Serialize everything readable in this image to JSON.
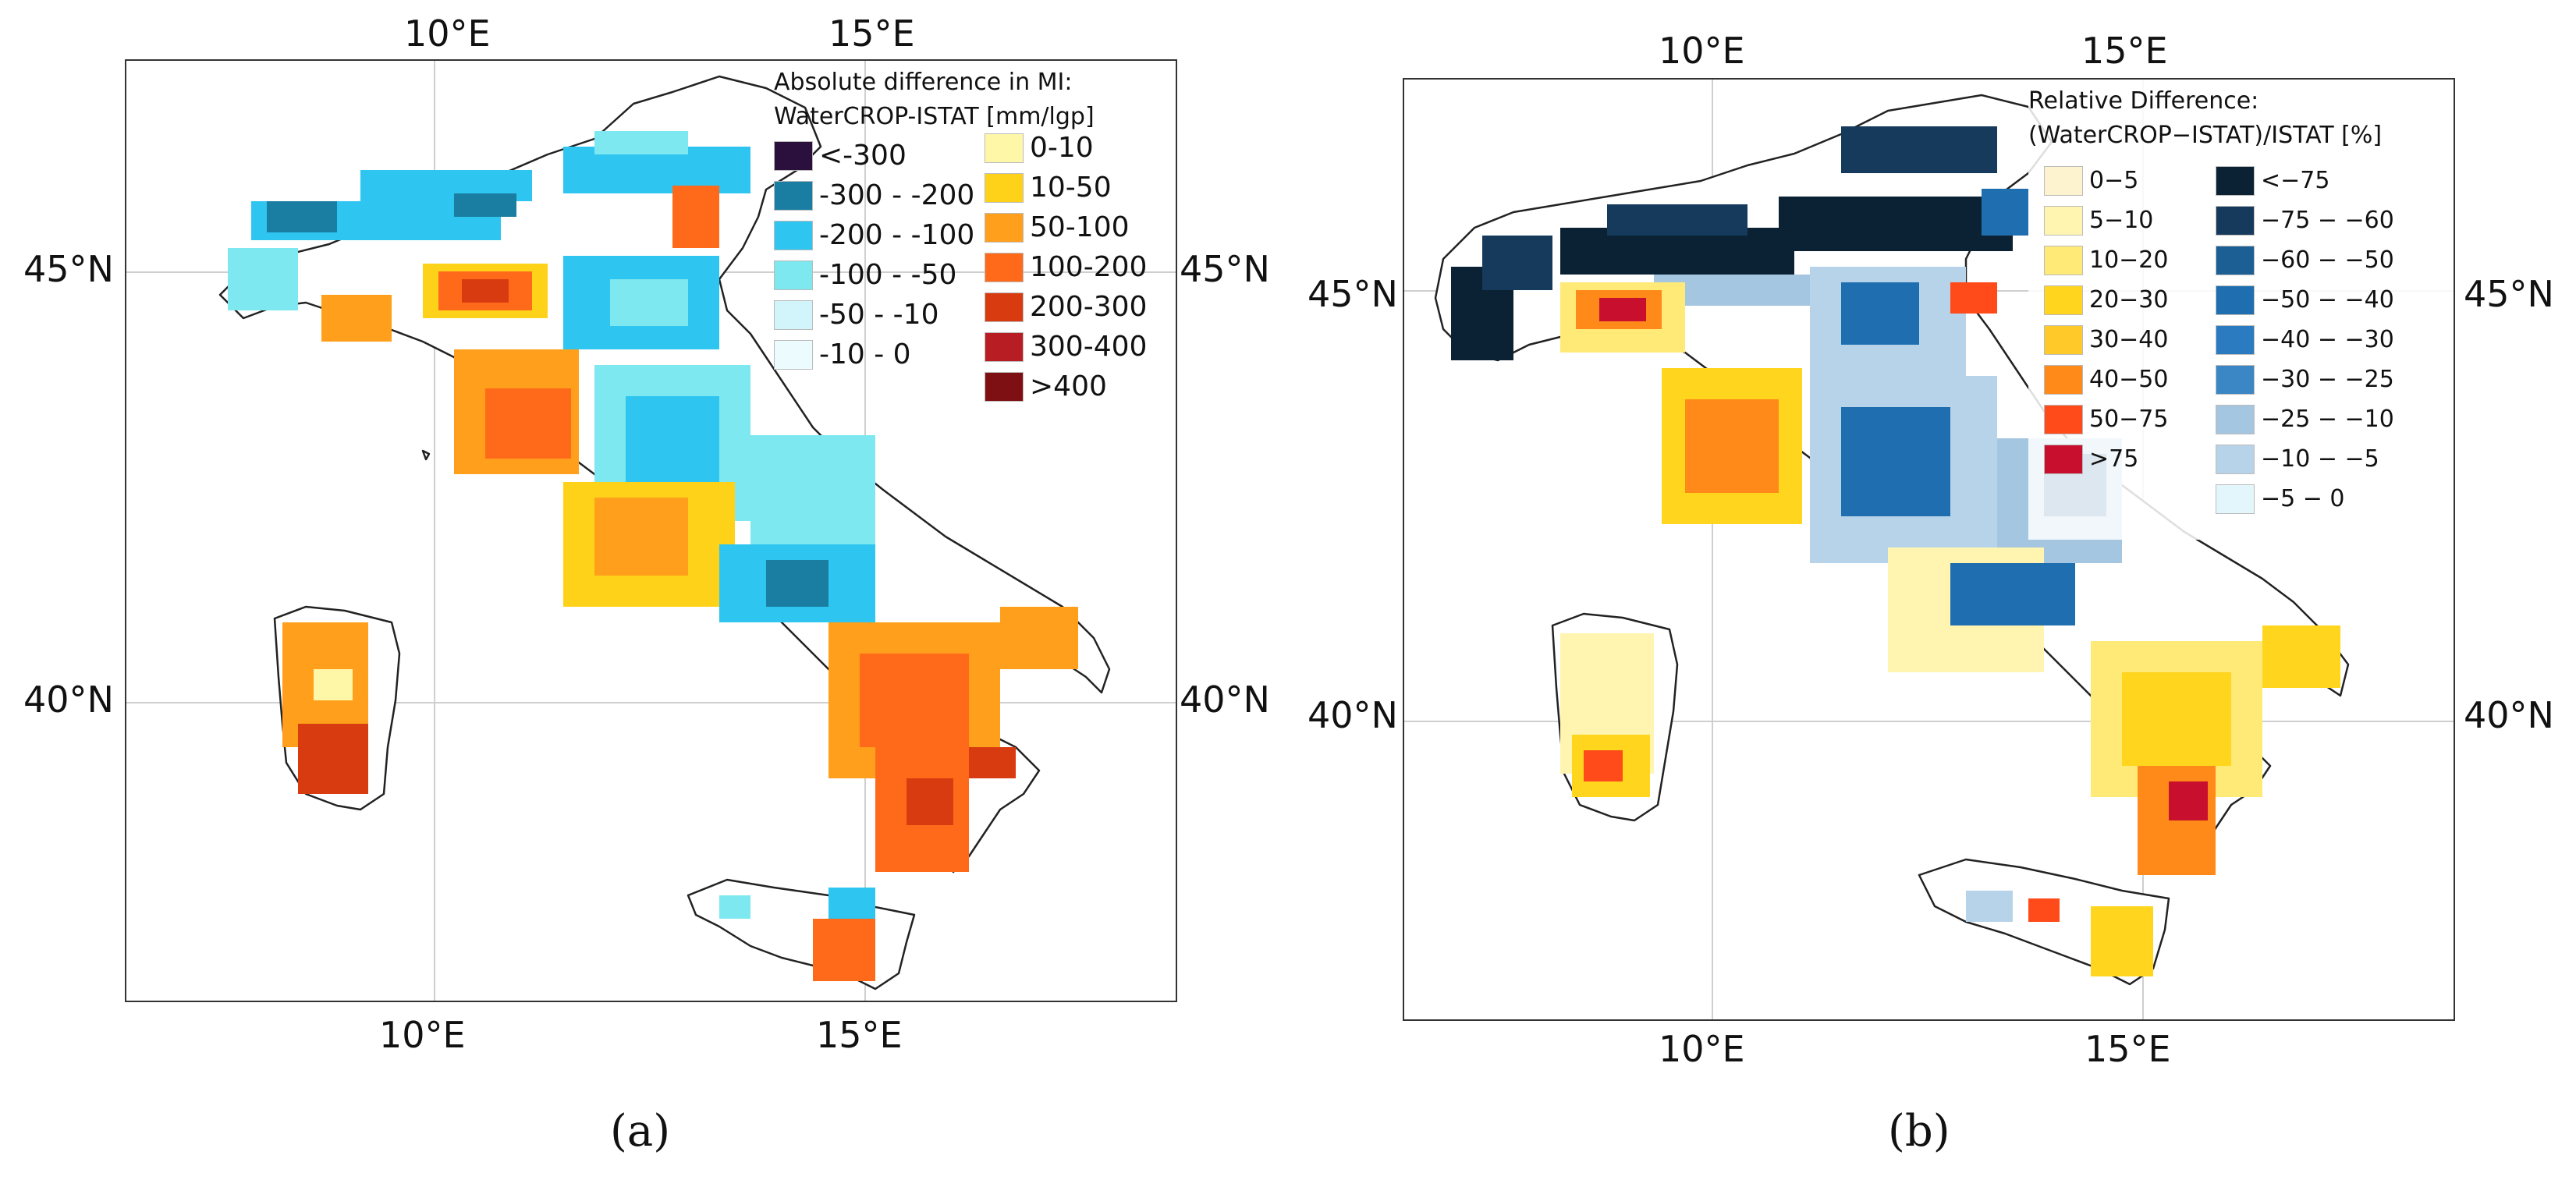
{
  "panel_a": {
    "caption": "(a)",
    "lon_ticks": [
      "10°E",
      "15°E"
    ],
    "lat_ticks": [
      "45°N",
      "40°N"
    ],
    "legend": {
      "title_line1": "Absolute difference in MI:",
      "title_line2": "WaterCROP-ISTAT [mm/lgp]",
      "left_items": [
        {
          "label": "<-300",
          "color": "#2b0f3d"
        },
        {
          "label": "-300 - -200",
          "color": "#1a7ea3"
        },
        {
          "label": "-200 - -100",
          "color": "#2ec5f0"
        },
        {
          "label": "-100 - -50",
          "color": "#7de8ef"
        },
        {
          "label": "-50 - -10",
          "color": "#d2f5fb"
        },
        {
          "label": "-10 - 0",
          "color": "#ecfbfd"
        }
      ],
      "right_items": [
        {
          "label": "0-10",
          "color": "#fff7a8"
        },
        {
          "label": "10-50",
          "color": "#ffd21a"
        },
        {
          "label": "50-100",
          "color": "#ff9f1c"
        },
        {
          "label": "100-200",
          "color": "#ff6a1a"
        },
        {
          "label": "200-300",
          "color": "#d83b10"
        },
        {
          "label": "300-400",
          "color": "#b81d24"
        },
        {
          "label": ">400",
          "color": "#7e0f12"
        }
      ]
    }
  },
  "panel_b": {
    "caption": "(b)",
    "lon_ticks": [
      "10°E",
      "15°E"
    ],
    "lat_ticks": [
      "45°N",
      "40°N"
    ],
    "legend": {
      "title_line1": "Relative Difference:",
      "title_line2": "(WaterCROP−ISTAT)/ISTAT [%]",
      "left_items": [
        {
          "label": "0−5",
          "color": "#fdf4cf"
        },
        {
          "label": "5−10",
          "color": "#fff5b0"
        },
        {
          "label": "10−20",
          "color": "#ffe977"
        },
        {
          "label": "20−30",
          "color": "#ffd51e"
        },
        {
          "label": "30−40",
          "color": "#ffc92a"
        },
        {
          "label": "40−50",
          "color": "#ff8a1a"
        },
        {
          "label": "50−75",
          "color": "#ff4a1a"
        },
        {
          "label": ">75",
          "color": "#c8102e"
        }
      ],
      "right_items": [
        {
          "label": "<−75",
          "color": "#0b2234"
        },
        {
          "label": "−75 − −60",
          "color": "#153a5c"
        },
        {
          "label": "−60 − −50",
          "color": "#1b5f95"
        },
        {
          "label": "−50 − −40",
          "color": "#1f6fb0"
        },
        {
          "label": "−40 − −30",
          "color": "#2a7bbf"
        },
        {
          "label": "−30 − −25",
          "color": "#3b86c4"
        },
        {
          "label": "−25 − −10",
          "color": "#a4c6e0"
        },
        {
          "label": "−10 − −5",
          "color": "#b7d3ea"
        },
        {
          "label": "−5 − 0",
          "color": "#e2f6fb"
        }
      ]
    }
  }
}
